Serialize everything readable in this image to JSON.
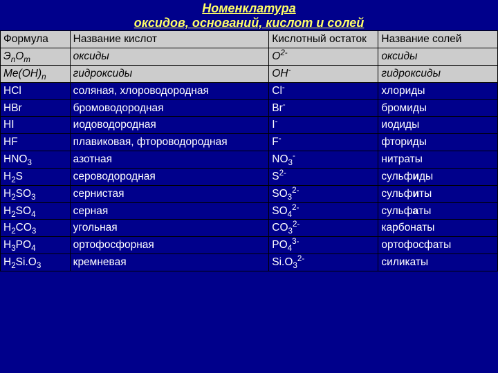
{
  "title_line1": "Номенклатура",
  "title_line2": "оксидов, оснований, кислот и солей",
  "headers": {
    "c1": "Формула",
    "c2": "Название кислот",
    "c3": "Кислотный остаток",
    "c4": "Название солей"
  },
  "rows": [
    {
      "style": "gray",
      "f": "Э<sub class='it'>n</sub>O<sub class='it'>m</sub>",
      "name": "оксиды",
      "residue": "O<sup>2-</sup>",
      "salt": "оксиды",
      "f_italic": true
    },
    {
      "style": "gray",
      "f": "Ме(ОН)<sub class='it'>n</sub>",
      "name": "гидроксиды",
      "residue": "OH<sup>-</sup>",
      "salt": "гидроксиды",
      "f_italic": true
    },
    {
      "style": "blue",
      "f": "HCl",
      "name": "соляная, хлороводородная",
      "residue": "Cl<sup>-</sup>",
      "salt": "хлориды"
    },
    {
      "style": "blue",
      "f": "HBr",
      "name": "бромоводородная",
      "residue": "Br<sup>-</sup>",
      "salt": "бромиды"
    },
    {
      "style": "blue",
      "f": "HI",
      "name": "иодоводородная",
      "residue": "I<sup>-</sup>",
      "salt": "иодиды"
    },
    {
      "style": "blue",
      "f": "HF",
      "name": "плавиковая, фтороводородная",
      "residue": "F<sup>-</sup>",
      "salt": "фториды"
    },
    {
      "style": "blue",
      "f": "HNO<sub>3</sub>",
      "name": "азотная",
      "residue": "NO<sub>3</sub><sup>-</sup>",
      "salt": "нитраты"
    },
    {
      "style": "blue",
      "f": "H<sub>2</sub>S",
      "name": "сероводородная",
      "residue": "S<sup>2-</sup>",
      "salt": "сульф<b>и</b>ды"
    },
    {
      "style": "blue",
      "f": "H<sub>2</sub>SO<sub>3</sub>",
      "name": "сернистая",
      "residue": "SO<sub>3</sub><sup>2-</sup>",
      "salt": "сульф<b>и</b>ты"
    },
    {
      "style": "blue",
      "f": "H<sub>2</sub>SO<sub>4</sub>",
      "name": "серная",
      "residue": "SO<sub>4</sub><sup>2-</sup>",
      "salt": "сульф<b>а</b>ты"
    },
    {
      "style": "blue",
      "f": "H<sub>2</sub>CO<sub>3</sub>",
      "name": "угольная",
      "residue": "CO<sub>3</sub><sup>2-</sup>",
      "salt": "карбонаты"
    },
    {
      "style": "blue",
      "f": "H<sub>3</sub>PO<sub>4</sub>",
      "name": "ортофосфорная",
      "residue": "PO<sub>4</sub><sup>3-</sup>",
      "salt": "ортофосфаты"
    },
    {
      "style": "blue",
      "f": "H<sub>2</sub>Si.O<sub>3</sub>",
      "name": "кремневая",
      "residue": "Si.O<sub>3</sub><sup>2-</sup>",
      "salt": "силикаты"
    }
  ],
  "col_widths": [
    "14%",
    "40%",
    "22%",
    "24%"
  ],
  "colors": {
    "page_bg": "#00008b",
    "title_color": "#ffff66",
    "header_bg": "#cccccc",
    "row_text_light": "#ffffff",
    "row_text_dark": "#000000",
    "border": "#000000"
  },
  "fonts": {
    "title_size_pt": 18,
    "cell_size_pt": 15.5,
    "family": "Arial"
  }
}
